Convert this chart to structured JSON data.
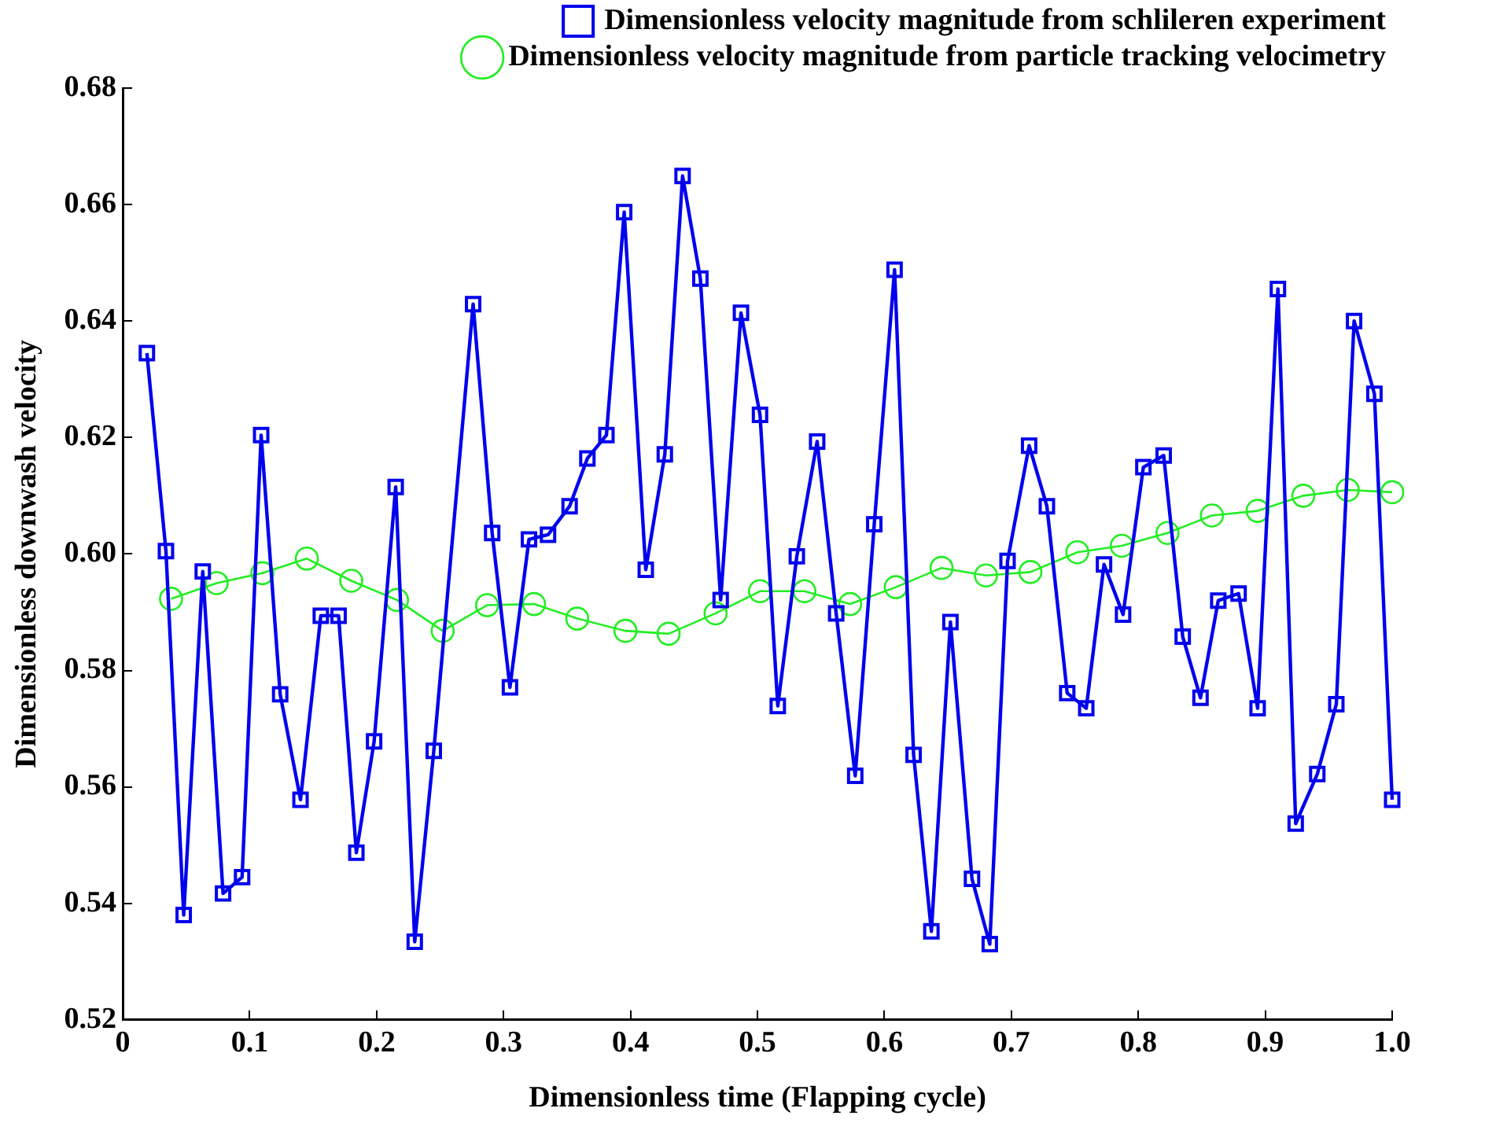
{
  "chart_data": {
    "type": "line",
    "xlabel": "Dimensionless time (Flapping cycle)",
    "ylabel": "Dimensionless downwash velocity",
    "legend": "top",
    "xlim": [
      0,
      1
    ],
    "ylim": [
      0.52,
      0.68
    ],
    "xticks": [
      {
        "value": 0,
        "label": "0"
      },
      0.1,
      0.2,
      0.3,
      0.4,
      0.5,
      0.6,
      0.7,
      0.8,
      0.9,
      {
        "value": 1,
        "label": "1.0"
      }
    ],
    "yticks": [
      0.52,
      0.54,
      0.56,
      0.58,
      {
        "value": 0.6,
        "label": "0.60"
      },
      0.62,
      0.64,
      0.66,
      0.68
    ],
    "series": [
      {
        "name": "Dimensionless velocity magnitude from schlileren experiment",
        "color": "#0000ee",
        "marker": "square",
        "x": [
          0.019,
          0.034,
          0.048,
          0.063,
          0.079,
          0.094,
          0.109,
          0.124,
          0.14,
          0.156,
          0.17,
          0.184,
          0.198,
          0.215,
          0.23,
          0.245,
          0.276,
          0.291,
          0.305,
          0.32,
          0.335,
          0.352,
          0.366,
          0.381,
          0.395,
          0.412,
          0.427,
          0.441,
          0.455,
          0.471,
          0.487,
          0.502,
          0.516,
          0.531,
          0.547,
          0.562,
          0.577,
          0.592,
          0.608,
          0.623,
          0.637,
          0.652,
          0.669,
          0.683,
          0.697,
          0.714,
          0.728,
          0.744,
          0.759,
          0.773,
          0.788,
          0.804,
          0.82,
          0.835,
          0.849,
          0.863,
          0.879,
          0.894,
          0.91,
          0.924,
          0.941,
          0.956,
          0.97,
          0.986,
          1.0
        ],
        "values": [
          0.6345,
          0.6005,
          0.538,
          0.597,
          0.5417,
          0.5445,
          0.6204,
          0.5759,
          0.5578,
          0.5894,
          0.5894,
          0.5487,
          0.5678,
          0.6115,
          0.5334,
          0.5662,
          0.6429,
          0.6036,
          0.5771,
          0.6025,
          0.6033,
          0.6082,
          0.6164,
          0.6204,
          0.6587,
          0.5973,
          0.6171,
          0.6649,
          0.6473,
          0.5921,
          0.6414,
          0.6239,
          0.5739,
          0.5996,
          0.6193,
          0.5898,
          0.5619,
          0.6051,
          0.6488,
          0.5655,
          0.5352,
          0.5883,
          0.5442,
          0.533,
          0.5988,
          0.6186,
          0.6082,
          0.5761,
          0.5735,
          0.5982,
          0.5896,
          0.6149,
          0.6169,
          0.5858,
          0.5753,
          0.592,
          0.5932,
          0.5735,
          0.6455,
          0.5537,
          0.5622,
          0.5742,
          0.64,
          0.6275,
          0.5578
        ]
      },
      {
        "name": "Dimensionless velocity magnitude from particle tracking velocimetry",
        "color": "#22ee22",
        "marker": "circle",
        "x": [
          0.038,
          0.074,
          0.11,
          0.145,
          0.18,
          0.216,
          0.252,
          0.287,
          0.324,
          0.358,
          0.396,
          0.43,
          0.467,
          0.502,
          0.537,
          0.573,
          0.609,
          0.645,
          0.68,
          0.715,
          0.752,
          0.787,
          0.823,
          0.858,
          0.894,
          0.93,
          0.965,
          1.0
        ],
        "values": [
          0.5923,
          0.595,
          0.5967,
          0.5992,
          0.5954,
          0.5921,
          0.5868,
          0.5912,
          0.5914,
          0.5889,
          0.5868,
          0.5863,
          0.5898,
          0.5936,
          0.5936,
          0.5914,
          0.5943,
          0.5976,
          0.5963,
          0.5969,
          0.6003,
          0.6014,
          0.6036,
          0.6066,
          0.6074,
          0.61,
          0.611,
          0.6106
        ]
      }
    ]
  }
}
